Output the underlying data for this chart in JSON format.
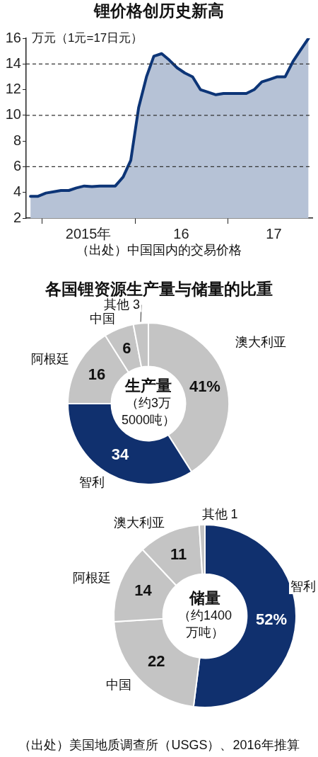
{
  "chart_data": [
    {
      "type": "area",
      "title": "锂价格创历史新高",
      "ylabel": "万元（1元=17日元）",
      "annotations": [
        "（出处）中国国内的交易价格"
      ],
      "x": [
        "2014-11-15",
        "2014-12-15",
        "2015-01-15",
        "2015-02-15",
        "2015-03-15",
        "2015-04-15",
        "2015-05-15",
        "2015-06-15",
        "2015-07-15",
        "2015-08-15",
        "2015-10-15",
        "2015-11-15",
        "2015-12-15",
        "2016-01-15",
        "2016-02-15",
        "2016-03-15",
        "2016-04-15",
        "2016-05-15",
        "2016-06-15",
        "2016-07-15",
        "2016-08-15",
        "2016-09-15",
        "2016-10-15",
        "2016-11-15",
        "2016-12-15",
        "2017-03-15",
        "2017-04-15",
        "2017-05-15",
        "2017-06-15",
        "2017-07-15",
        "2017-08-15",
        "2017-09-15",
        "2017-10-15",
        "2017-11-15"
      ],
      "values": [
        3.7,
        3.7,
        3.95,
        4.05,
        4.15,
        4.15,
        4.35,
        4.5,
        4.45,
        4.5,
        4.5,
        5.2,
        6.5,
        10.6,
        13.0,
        14.6,
        14.8,
        14.3,
        13.7,
        13.3,
        13.0,
        12.0,
        11.8,
        11.6,
        11.7,
        11.7,
        12.0,
        12.6,
        12.8,
        13.0,
        13.0,
        14.2,
        15.1,
        16.0
      ],
      "color": "#0d3577",
      "xlim": [
        "2014-10-29",
        "2017-11-30"
      ],
      "xticks": [
        {
          "value": "2015-01-01",
          "label": null
        },
        {
          "value": "2015-07-01",
          "label": "2015年"
        },
        {
          "value": "2016-01-01",
          "label": null
        },
        {
          "value": "2016-07-01",
          "label": "16"
        },
        {
          "value": "2017-01-01",
          "label": null
        },
        {
          "value": "2017-07-01",
          "label": "17"
        }
      ],
      "ylim": [
        2,
        16
      ],
      "yticks": [
        2,
        4,
        6,
        8,
        10,
        12,
        14,
        16
      ],
      "grid": false,
      "ref_lines": [
        {
          "axis": "y",
          "value": 6,
          "line_style": "dashed",
          "color": "#333333"
        },
        {
          "axis": "y",
          "value": 10,
          "line_style": "dashed",
          "color": "#333333"
        },
        {
          "axis": "y",
          "value": 14,
          "line_style": "dashed",
          "color": "#333333"
        }
      ]
    },
    {
      "type": "donut",
      "title": "各国锂资源生产量与储量的比重",
      "annotations": [
        "生产量",
        "（约3万5000吨）"
      ],
      "categories": [
        "澳大利亚",
        "智利",
        "阿根廷",
        "中国",
        "其他"
      ],
      "values": [
        41,
        34,
        16,
        6,
        3
      ],
      "colors": [
        "#c4c4c4",
        "#10306e",
        "#c4c4c4",
        "#c4c4c4",
        "#c4c4c4"
      ],
      "value_labels": [
        "41%",
        "34",
        "16",
        "6",
        "3"
      ]
    },
    {
      "type": "donut",
      "annotations": [
        "储量",
        "（约1400万吨）",
        "（出处）美国地质调查所（USGS）、2016年推算"
      ],
      "categories": [
        "智利",
        "中国",
        "阿根廷",
        "澳大利亚",
        "其他"
      ],
      "values": [
        52,
        22,
        14,
        11,
        1
      ],
      "colors": [
        "#10306e",
        "#c4c4c4",
        "#c4c4c4",
        "#c4c4c4",
        "#c4c4c4"
      ],
      "value_labels": [
        "52%",
        "22",
        "14",
        "11",
        "1"
      ]
    }
  ]
}
